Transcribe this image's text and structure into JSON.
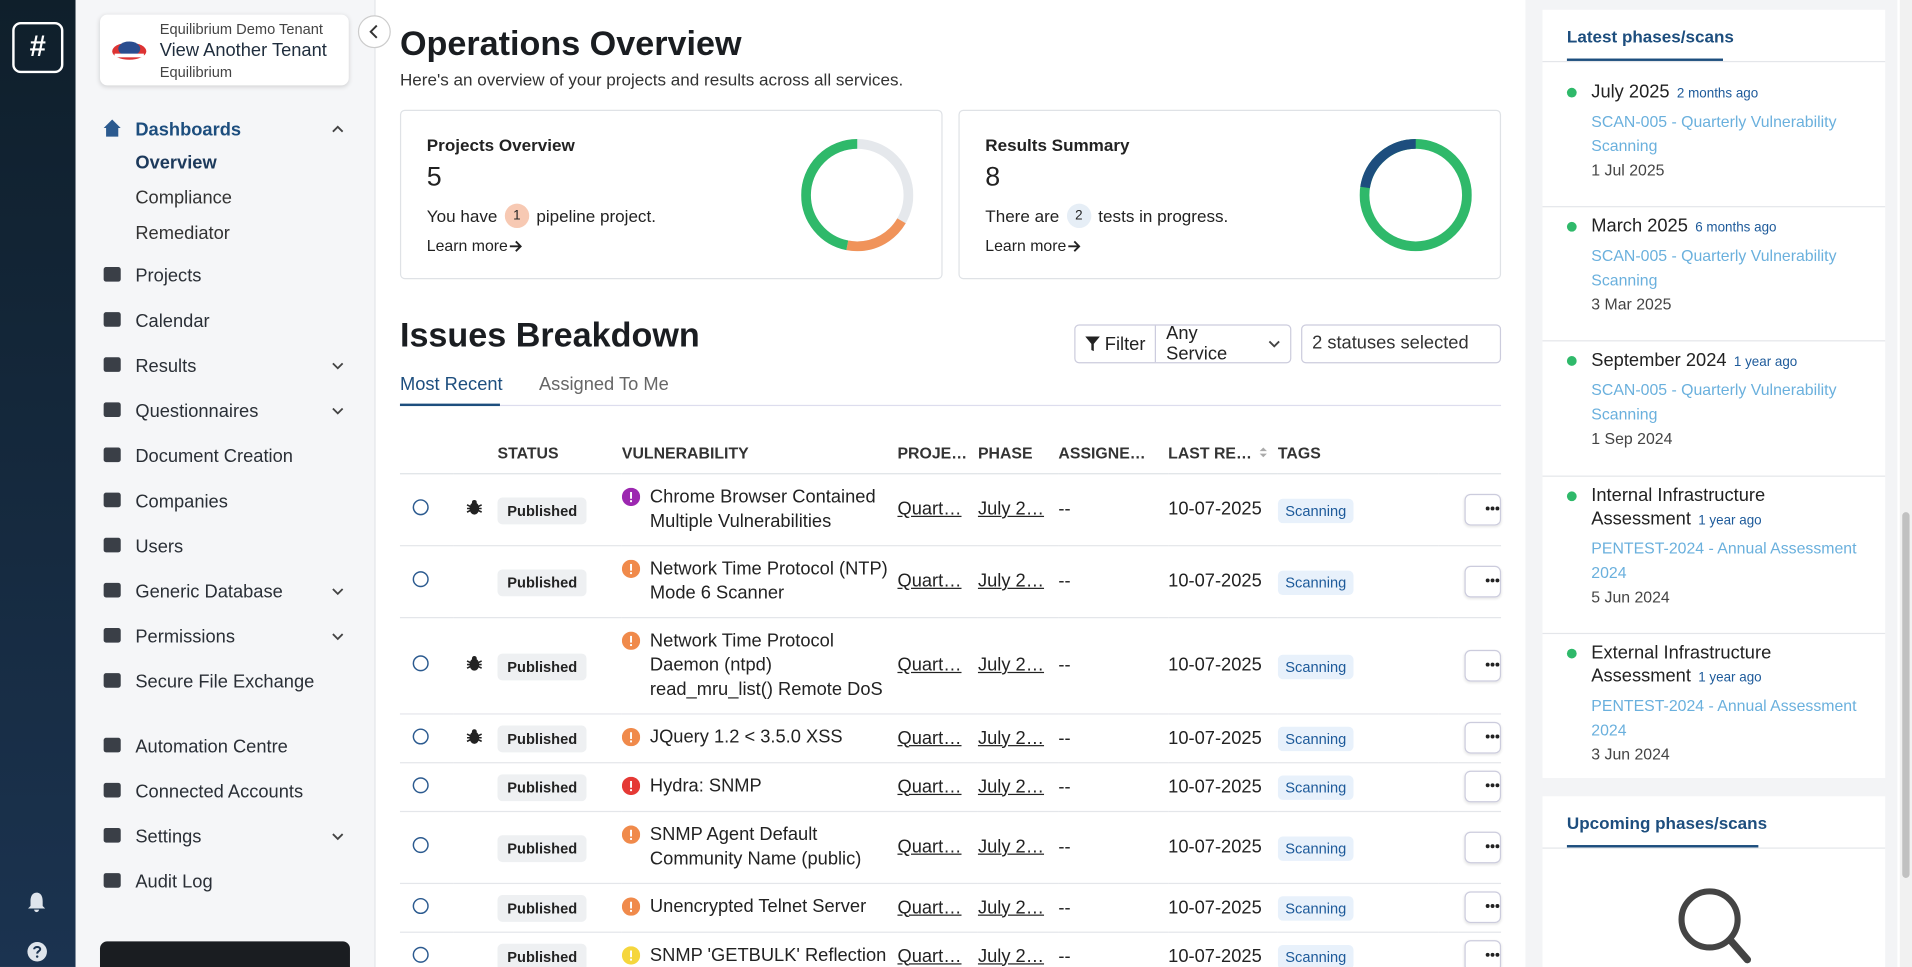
{
  "logo": "#",
  "sidebar": {
    "tenant": {
      "label": "Equilibrium Demo Tenant",
      "action": "View Another Tenant",
      "name": "Equilibrium"
    },
    "nav": [
      {
        "label": "Dashboards",
        "active": true,
        "expanded": true,
        "children": [
          "Overview",
          "Compliance",
          "Remediator"
        ],
        "active_child": 0
      },
      {
        "label": "Projects"
      },
      {
        "label": "Calendar"
      },
      {
        "label": "Results",
        "chevron": true
      },
      {
        "label": "Questionnaires",
        "chevron": true
      },
      {
        "label": "Document Creation"
      },
      {
        "label": "Companies"
      },
      {
        "label": "Users"
      },
      {
        "label": "Generic Database",
        "chevron": true
      },
      {
        "label": "Permissions",
        "chevron": true
      },
      {
        "label": "Secure File Exchange"
      },
      {
        "label": "Automation Centre",
        "gap": true
      },
      {
        "label": "Connected Accounts"
      },
      {
        "label": "Settings",
        "chevron": true
      },
      {
        "label": "Audit Log"
      }
    ]
  },
  "header": {
    "title": "Operations Overview",
    "subtitle": "Here's an overview of your projects and results across all services."
  },
  "cards": [
    {
      "title": "Projects Overview",
      "value": "5",
      "text_before": "You have",
      "badge": "1",
      "text_after": "pipeline project.",
      "link": "Learn more",
      "badge_color": "#f7c9b3"
    },
    {
      "title": "Results Summary",
      "value": "8",
      "text_before": "There are",
      "badge": "2",
      "text_after": "tests in progress.",
      "link": "Learn more",
      "badge_color": "#e6eef6"
    }
  ],
  "issues": {
    "title": "Issues Breakdown",
    "filter": "Filter",
    "service": "Any Service",
    "statuses": "2 statuses selected",
    "tabs": [
      "Most Recent",
      "Assigned To Me"
    ],
    "columns": [
      "STATUS",
      "VULNERABILITY",
      "PROJE…",
      "PHASE",
      "ASSIGNE…",
      "LAST RE…",
      "TAGS"
    ],
    "rows": [
      {
        "bug": true,
        "status": "Published",
        "severity_color": "#9c27b0",
        "vulnerability": "Chrome Browser Contained Multiple Vulnerabilities",
        "project": "Quart…",
        "phase": "July 2…",
        "assignee": "--",
        "last": "10-07-2025",
        "tag": "Scanning"
      },
      {
        "bug": false,
        "status": "Published",
        "severity_color": "#f08a4b",
        "vulnerability": "Network Time Protocol (NTP) Mode 6 Scanner",
        "project": "Quart…",
        "phase": "July 2…",
        "assignee": "--",
        "last": "10-07-2025",
        "tag": "Scanning"
      },
      {
        "bug": true,
        "status": "Published",
        "severity_color": "#f08a4b",
        "vulnerability": "Network Time Protocol Daemon (ntpd) read_mru_list() Remote DoS",
        "project": "Quart…",
        "phase": "July 2…",
        "assignee": "--",
        "last": "10-07-2025",
        "tag": "Scanning"
      },
      {
        "bug": true,
        "status": "Published",
        "severity_color": "#f08a4b",
        "vulnerability": "JQuery 1.2 < 3.5.0 XSS",
        "project": "Quart…",
        "phase": "July 2…",
        "assignee": "--",
        "last": "10-07-2025",
        "tag": "Scanning"
      },
      {
        "bug": false,
        "status": "Published",
        "severity_color": "#e53935",
        "vulnerability": "Hydra: SNMP",
        "project": "Quart…",
        "phase": "July 2…",
        "assignee": "--",
        "last": "10-07-2025",
        "tag": "Scanning"
      },
      {
        "bug": false,
        "status": "Published",
        "severity_color": "#f08a4b",
        "vulnerability": "SNMP Agent Default Community Name (public)",
        "project": "Quart…",
        "phase": "July 2…",
        "assignee": "--",
        "last": "10-07-2025",
        "tag": "Scanning"
      },
      {
        "bug": false,
        "status": "Published",
        "severity_color": "#f08a4b",
        "vulnerability": "Unencrypted Telnet Server",
        "project": "Quart…",
        "phase": "July 2…",
        "assignee": "--",
        "last": "10-07-2025",
        "tag": "Scanning"
      },
      {
        "bug": false,
        "status": "Published",
        "severity_color": "#f5d63d",
        "vulnerability": "SNMP 'GETBULK' Reflection",
        "project": "Quart…",
        "phase": "July 2…",
        "assignee": "--",
        "last": "10-07-2025",
        "tag": "Scanning"
      }
    ]
  },
  "latest": {
    "title": "Latest phases/scans",
    "items": [
      {
        "title": "July 2025",
        "ago": "2 months ago",
        "scan": "SCAN-005 - Quarterly Vulnerability Scanning",
        "date": "1 Jul 2025"
      },
      {
        "title": "March 2025",
        "ago": "6 months ago",
        "scan": "SCAN-005 - Quarterly Vulnerability Scanning",
        "date": "3 Mar 2025"
      },
      {
        "title": "September 2024",
        "ago": "1 year ago",
        "scan": "SCAN-005 - Quarterly Vulnerability Scanning",
        "date": "1 Sep 2024"
      },
      {
        "title": "Internal Infrastructure Assessment",
        "ago": "1 year ago",
        "scan": "PENTEST-2024 - Annual Assessment 2024",
        "date": "5 Jun 2024"
      },
      {
        "title": "External Infrastructure Assessment",
        "ago": "1 year ago",
        "scan": "PENTEST-2024 - Annual Assessment 2024",
        "date": "3 Jun 2024"
      }
    ]
  },
  "upcoming": {
    "title": "Upcoming phases/scans"
  }
}
